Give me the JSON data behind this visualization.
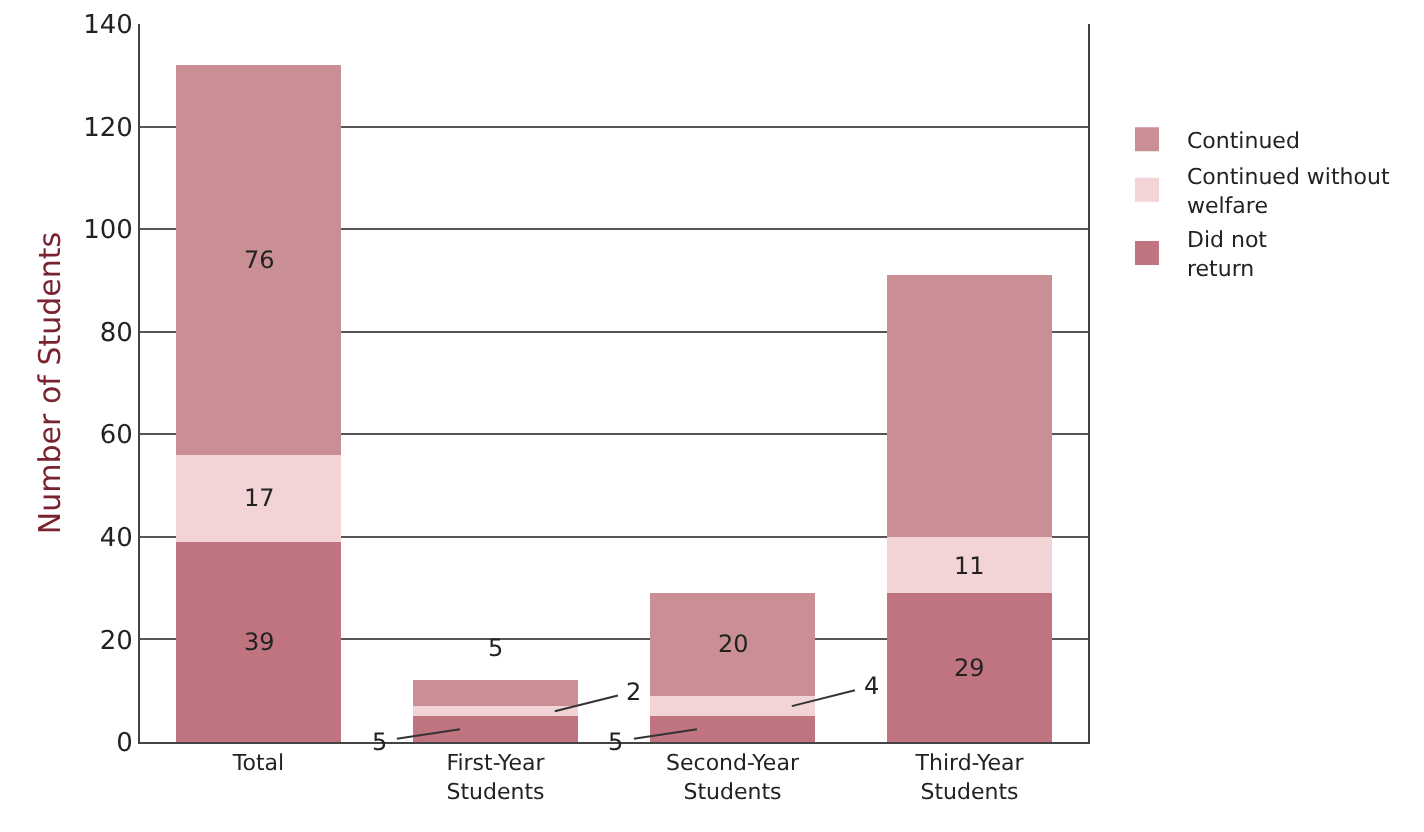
{
  "chart_data": {
    "type": "bar",
    "stacked": true,
    "ylabel": "Number of Students",
    "categories": [
      "Total",
      "First-Year Students",
      "Second-Year Students",
      "Third-Year Students"
    ],
    "series": [
      {
        "name": "Did not return",
        "color": "#c07480",
        "values": [
          39,
          5,
          5,
          29
        ],
        "value_labels": [
          "39",
          "5",
          "5",
          "29"
        ]
      },
      {
        "name": "Continued without welfare",
        "color": "#f2d3d6",
        "values": [
          17,
          2,
          4,
          11
        ],
        "value_labels": [
          "17",
          "2",
          "4",
          "11"
        ]
      },
      {
        "name": "Continued",
        "color": "#c98f94",
        "values": [
          76,
          5,
          20,
          51
        ],
        "value_labels": [
          "76",
          "5",
          "20",
          null
        ]
      }
    ],
    "ylim": [
      0,
      140
    ],
    "yticks": [
      0,
      20,
      40,
      60,
      80,
      100,
      120,
      140
    ],
    "grid": "y",
    "legend": "top right"
  }
}
